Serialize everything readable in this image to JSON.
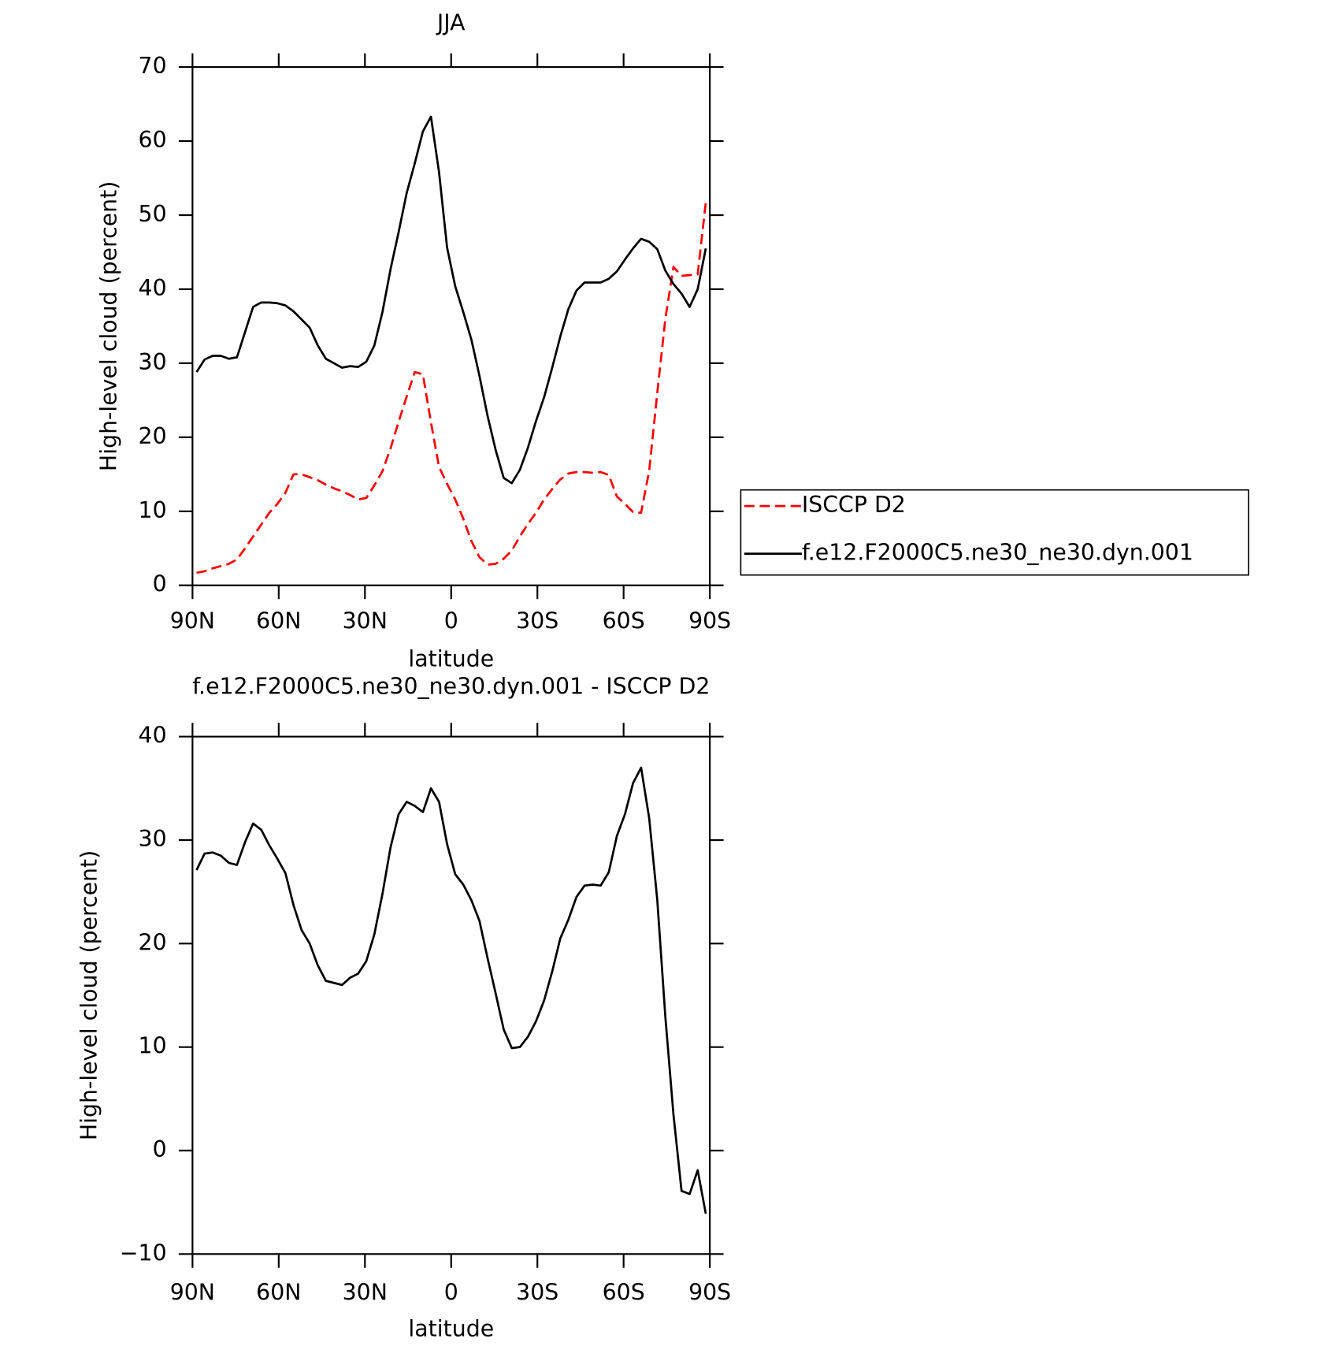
{
  "chart_data": [
    {
      "type": "line",
      "title": "JJA",
      "xlabel": "latitude",
      "ylabel": "High-level cloud (percent)",
      "x": [
        88.59,
        85.78,
        82.97,
        80.16,
        77.34,
        74.53,
        71.72,
        68.91,
        66.09,
        63.28,
        60.47,
        57.66,
        54.84,
        52.03,
        49.22,
        46.41,
        43.59,
        40.78,
        37.97,
        35.16,
        32.34,
        29.53,
        26.72,
        23.91,
        21.09,
        18.28,
        15.47,
        12.66,
        9.84,
        7.03,
        4.22,
        1.41,
        -1.41,
        -4.22,
        -7.03,
        -9.84,
        -12.66,
        -15.47,
        -18.28,
        -21.09,
        -23.91,
        -26.72,
        -29.53,
        -32.34,
        -35.16,
        -37.97,
        -40.78,
        -43.59,
        -46.41,
        -49.22,
        -52.03,
        -54.84,
        -57.66,
        -60.47,
        -63.28,
        -66.09,
        -68.91,
        -71.72,
        -74.53,
        -77.34,
        -80.16,
        -82.97,
        -85.78,
        -88.59
      ],
      "series": [
        {
          "name": "ISCCP D2",
          "color": "#ff0000",
          "linestyle": "dashed",
          "values": [
            1.7,
            1.9,
            2.3,
            2.6,
            2.9,
            3.5,
            5,
            6.6,
            8.2,
            9.8,
            11,
            12.5,
            15,
            15,
            14.6,
            14.2,
            13.6,
            13.1,
            12.7,
            12.2,
            11.6,
            11.8,
            13.5,
            15.4,
            18.5,
            22.1,
            25.5,
            28.8,
            28.5,
            22,
            16,
            13.7,
            11.6,
            9,
            6,
            3.8,
            2.8,
            2.9,
            3.6,
            4.7,
            6.6,
            8.3,
            9.8,
            11.6,
            13,
            14.3,
            15.1,
            15.3,
            15.3,
            15.2,
            15.3,
            14.9,
            12,
            11,
            9.9,
            9.8,
            15.5,
            26,
            36,
            43,
            41.8,
            41.9,
            42,
            51.7
          ]
        },
        {
          "name": "f.e12.F2000C5.ne30_ne30.dyn.001",
          "color": "#000000",
          "linestyle": "solid",
          "values": [
            28.8,
            30.5,
            31,
            31,
            30.6,
            30.8,
            34.2,
            37.6,
            38.2,
            38.2,
            38.1,
            37.8,
            37,
            35.9,
            34.8,
            32.4,
            30.6,
            30,
            29.4,
            29.6,
            29.5,
            30.2,
            32.4,
            36.9,
            42.7,
            47.7,
            53,
            57,
            61.3,
            63.3,
            55.8,
            45.6,
            40.4,
            36.9,
            33.2,
            28.3,
            22.9,
            18.3,
            14.5,
            13.8,
            15.6,
            18.6,
            22.2,
            25.4,
            29.4,
            33.6,
            37.3,
            39.8,
            40.9,
            40.9,
            40.9,
            41.4,
            42.4,
            44,
            45.5,
            46.8,
            46.4,
            45.4,
            42.5,
            40.7,
            39.4,
            37.6,
            40,
            45.5
          ]
        }
      ],
      "xlim": [
        90,
        -90
      ],
      "xticks": [
        {
          "value": 90,
          "label": "90N"
        },
        {
          "value": 60,
          "label": "60N"
        },
        {
          "value": 30,
          "label": "30N"
        },
        0,
        {
          "value": -30,
          "label": "30S"
        },
        {
          "value": -60,
          "label": "60S"
        },
        {
          "value": -90,
          "label": "90S"
        }
      ],
      "ylim": [
        0,
        70
      ],
      "yticks": [
        0,
        10,
        20,
        30,
        40,
        50,
        60,
        70
      ],
      "legend": "right"
    },
    {
      "type": "line",
      "title": "f.e12.F2000C5.ne30_ne30.dyn.001 - ISCCP D2",
      "xlabel": "latitude",
      "ylabel": "High-level cloud (percent)",
      "x": [
        88.59,
        85.78,
        82.97,
        80.16,
        77.34,
        74.53,
        71.72,
        68.91,
        66.09,
        63.28,
        60.47,
        57.66,
        54.84,
        52.03,
        49.22,
        46.41,
        43.59,
        40.78,
        37.97,
        35.16,
        32.34,
        29.53,
        26.72,
        23.91,
        21.09,
        18.28,
        15.47,
        12.66,
        9.84,
        7.03,
        4.22,
        1.41,
        -1.41,
        -4.22,
        -7.03,
        -9.84,
        -12.66,
        -15.47,
        -18.28,
        -21.09,
        -23.91,
        -26.72,
        -29.53,
        -32.34,
        -35.16,
        -37.97,
        -40.78,
        -43.59,
        -46.41,
        -49.22,
        -52.03,
        -54.84,
        -57.66,
        -60.47,
        -63.28,
        -66.09,
        -68.91,
        -71.72,
        -74.53,
        -77.34,
        -80.16,
        -82.97,
        -85.78,
        -88.59
      ],
      "values": [
        27.1,
        28.7,
        28.8,
        28.5,
        27.8,
        27.6,
        29.8,
        31.6,
        31,
        29.5,
        28.2,
        26.8,
        23.7,
        21.3,
        20,
        17.9,
        16.4,
        16.2,
        16,
        16.7,
        17.1,
        18.3,
        20.9,
        24.8,
        29.3,
        32.5,
        33.7,
        33.3,
        32.7,
        35,
        33.7,
        29.6,
        26.7,
        25.7,
        24.2,
        22.2,
        18.6,
        15.2,
        11.7,
        9.9,
        10,
        11,
        12.5,
        14.5,
        17.3,
        20.5,
        22.3,
        24.5,
        25.6,
        25.7,
        25.6,
        26.9,
        30.4,
        32.5,
        35.5,
        37,
        32.1,
        24.2,
        12.9,
        3.5,
        -3.9,
        -4.2,
        -1.9,
        -6.1
      ],
      "color": "#000000",
      "xlim": [
        90,
        -90
      ],
      "xticks": [
        {
          "value": 90,
          "label": "90N"
        },
        {
          "value": 60,
          "label": "60N"
        },
        {
          "value": 30,
          "label": "30N"
        },
        0,
        {
          "value": -30,
          "label": "30S"
        },
        {
          "value": -60,
          "label": "60S"
        },
        {
          "value": -90,
          "label": "90S"
        }
      ],
      "ylim": [
        -10,
        40
      ],
      "yticks": [
        {
          "value": -10,
          "label": "−10"
        },
        0,
        10,
        20,
        30,
        40
      ]
    }
  ]
}
